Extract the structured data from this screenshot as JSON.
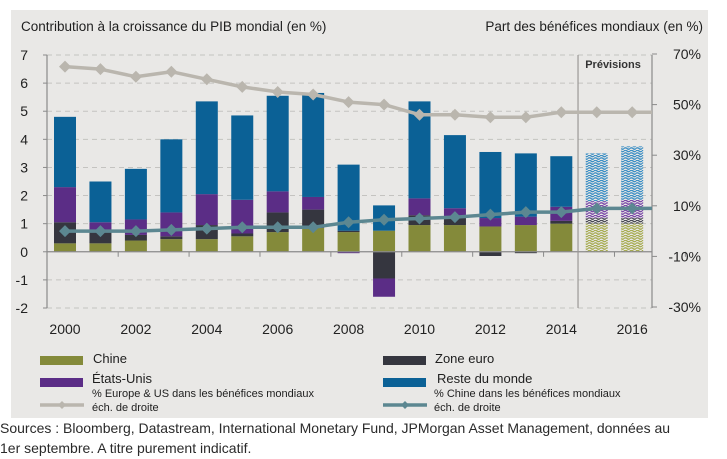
{
  "titles": {
    "left": "Contribution à la croissance du PIB mondial (en %)",
    "right": "Part des bénéfices mondiaux (en %)"
  },
  "forecast_label": "Prévisions",
  "colors": {
    "chine": "#848a3a",
    "zone_euro": "#35363f",
    "etats_unis": "#5b2d86",
    "reste": "#0b6196",
    "eu_us_line": "#bab6ae",
    "chine_line": "#5c8791",
    "grid": "#c4c3c0",
    "axis": "#8a8a8a"
  },
  "chart_data": {
    "type": "bar",
    "stacked": true,
    "categories": [
      "2000",
      "2001",
      "2002",
      "2003",
      "2004",
      "2005",
      "2006",
      "2007",
      "2008",
      "2009",
      "2010",
      "2011",
      "2012",
      "2013",
      "2014",
      "2015",
      "2016"
    ],
    "forecast_from": "2015",
    "series": [
      {
        "name": "Chine",
        "key": "chine",
        "values": [
          0.3,
          0.3,
          0.4,
          0.45,
          0.45,
          0.55,
          0.7,
          0.85,
          0.7,
          0.75,
          0.95,
          0.95,
          0.9,
          0.95,
          1.0,
          1.0,
          1.0
        ]
      },
      {
        "name": "Zone euro",
        "key": "zone_euro",
        "values": [
          0.75,
          0.4,
          0.2,
          0.1,
          0.5,
          0.1,
          0.7,
          0.65,
          0.05,
          -0.95,
          0.35,
          0.25,
          -0.15,
          -0.05,
          0.1,
          0.2,
          0.2
        ]
      },
      {
        "name": "États-Unis",
        "key": "etats_unis",
        "values": [
          1.25,
          0.35,
          0.55,
          0.85,
          1.1,
          1.2,
          0.75,
          0.45,
          -0.05,
          -0.65,
          0.6,
          0.35,
          0.3,
          0.3,
          0.5,
          0.6,
          0.65
        ]
      },
      {
        "name": "Reste du monde",
        "key": "reste",
        "values": [
          2.5,
          1.45,
          1.8,
          2.6,
          3.3,
          3.0,
          3.4,
          3.7,
          2.35,
          0.9,
          3.45,
          2.6,
          2.35,
          2.25,
          1.8,
          1.7,
          1.9
        ]
      }
    ],
    "lines": [
      {
        "name": "% Europe & US dans les bénéfices mondiaux",
        "note": "éch. de droite",
        "key": "eu_us_line",
        "axis": "right",
        "values": [
          65,
          64,
          61,
          63,
          60,
          57,
          55,
          54,
          51,
          50,
          46,
          46,
          45,
          45,
          47,
          47,
          47
        ]
      },
      {
        "name": "% Chine dans les bénéfices mondiaux",
        "note": "éch. de droite",
        "key": "chine_line",
        "axis": "right",
        "values": [
          0,
          0,
          0,
          0.5,
          1,
          1.5,
          1.5,
          1.5,
          3.5,
          4.5,
          5,
          5.5,
          6.5,
          7.5,
          7.5,
          9,
          9
        ]
      }
    ],
    "title": "Contribution à la croissance du PIB mondial (en %)",
    "ylabel": "Contribution à la croissance du PIB mondial (en %)",
    "ylabel_right": "Part des bénéfices mondiaux (en %)",
    "ylim": [
      -2,
      7
    ],
    "ylim_right": [
      -30,
      70
    ],
    "yticks": [
      "7",
      "6",
      "5",
      "4",
      "3",
      "2",
      "1",
      "0",
      "-1",
      "-2"
    ],
    "yticks_right": [
      "70%",
      "50%",
      "30%",
      "10%",
      "-10%",
      "-30%"
    ],
    "xtick_labels": [
      "2000",
      "2002",
      "2004",
      "2006",
      "2008",
      "2010",
      "2012",
      "2014",
      "2016"
    ],
    "grid": true,
    "legend_position": "bottom"
  },
  "legend": [
    {
      "label": "Chine",
      "key": "chine",
      "kind": "box"
    },
    {
      "label": "Zone euro",
      "key": "zone_euro",
      "kind": "box"
    },
    {
      "label": "États-Unis",
      "key": "etats_unis",
      "kind": "box"
    },
    {
      "label": "Reste du monde",
      "key": "reste",
      "kind": "box"
    },
    {
      "label": "% Europe & US dans les bénéfices mondiaux",
      "sub": "éch. de droite",
      "key": "eu_us_line",
      "kind": "line"
    },
    {
      "label": "% Chine dans les bénéfices mondiaux",
      "sub": "éch. de droite",
      "key": "chine_line",
      "kind": "line"
    }
  ],
  "footer": {
    "line1": "Sources : Bloomberg, Datastream, International Monetary Fund, JPMorgan Asset Management, données au",
    "line2": "1er septembre. A titre purement indicatif."
  }
}
